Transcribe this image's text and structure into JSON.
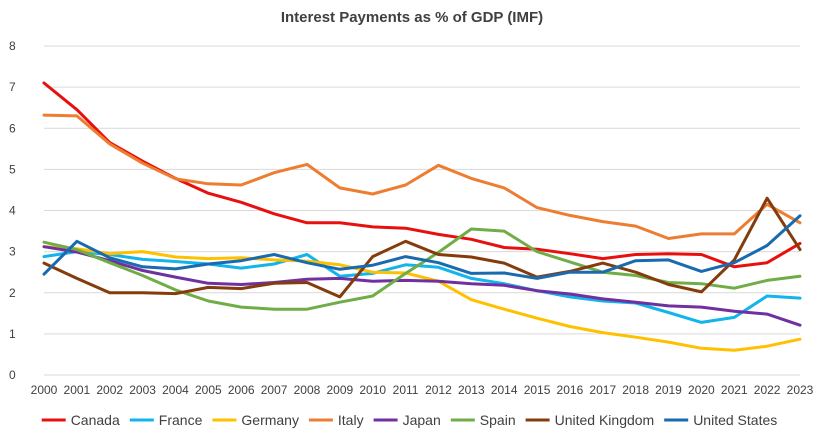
{
  "chart_data": {
    "type": "line",
    "title": "Interest Payments as % of GDP (IMF)",
    "xlabel": "",
    "ylabel": "",
    "x": [
      2000,
      2001,
      2002,
      2003,
      2004,
      2005,
      2006,
      2007,
      2008,
      2009,
      2010,
      2011,
      2012,
      2013,
      2014,
      2015,
      2016,
      2017,
      2018,
      2019,
      2020,
      2021,
      2022,
      2023
    ],
    "ylim": [
      0,
      8
    ],
    "yticks": [
      0,
      1,
      2,
      3,
      4,
      5,
      6,
      7,
      8
    ],
    "grid": true,
    "legend_position": "bottom",
    "series": [
      {
        "name": "Canada",
        "color": "#e8100e",
        "values": [
          7.1,
          6.45,
          5.65,
          5.2,
          4.78,
          4.42,
          4.2,
          3.92,
          3.7,
          3.7,
          3.6,
          3.57,
          3.42,
          3.3,
          3.1,
          3.06,
          2.95,
          2.83,
          2.93,
          2.95,
          2.93,
          2.63,
          2.73,
          3.2
        ]
      },
      {
        "name": "France",
        "color": "#12b4ec",
        "values": [
          2.88,
          3.0,
          2.93,
          2.81,
          2.76,
          2.7,
          2.6,
          2.7,
          2.93,
          2.4,
          2.47,
          2.68,
          2.62,
          2.35,
          2.22,
          2.05,
          1.9,
          1.8,
          1.75,
          1.52,
          1.28,
          1.4,
          1.92,
          1.87
        ]
      },
      {
        "name": "Germany",
        "color": "#ffc000",
        "values": [
          3.12,
          3.07,
          2.95,
          3.0,
          2.87,
          2.83,
          2.85,
          2.8,
          2.77,
          2.68,
          2.5,
          2.48,
          2.28,
          1.83,
          1.6,
          1.38,
          1.18,
          1.03,
          0.92,
          0.8,
          0.65,
          0.6,
          0.7,
          0.87
        ]
      },
      {
        "name": "Italy",
        "color": "#ed7d31",
        "values": [
          6.32,
          6.3,
          5.62,
          5.15,
          4.77,
          4.65,
          4.62,
          4.92,
          5.12,
          4.55,
          4.4,
          4.62,
          5.1,
          4.78,
          4.55,
          4.07,
          3.88,
          3.73,
          3.62,
          3.32,
          3.43,
          3.43,
          4.15,
          3.7
        ]
      },
      {
        "name": "Japan",
        "color": "#7030a0",
        "values": [
          3.12,
          2.99,
          2.78,
          2.54,
          2.38,
          2.23,
          2.2,
          2.25,
          2.33,
          2.35,
          2.28,
          2.3,
          2.28,
          2.22,
          2.18,
          2.05,
          1.97,
          1.85,
          1.77,
          1.68,
          1.65,
          1.55,
          1.48,
          1.21
        ]
      },
      {
        "name": "Spain",
        "color": "#70ad47",
        "values": [
          3.23,
          3.05,
          2.73,
          2.42,
          2.07,
          1.8,
          1.65,
          1.6,
          1.6,
          1.77,
          1.92,
          2.47,
          2.98,
          3.55,
          3.5,
          3.0,
          2.75,
          2.5,
          2.42,
          2.25,
          2.22,
          2.11,
          2.3,
          2.4
        ]
      },
      {
        "name": "United Kingdom",
        "color": "#843c0c",
        "values": [
          2.72,
          2.35,
          2.0,
          2.0,
          1.98,
          2.13,
          2.1,
          2.23,
          2.25,
          1.9,
          2.88,
          3.25,
          2.93,
          2.87,
          2.72,
          2.38,
          2.52,
          2.72,
          2.5,
          2.2,
          2.02,
          2.8,
          4.3,
          3.05
        ]
      },
      {
        "name": "United States",
        "color": "#1a6ab0",
        "values": [
          2.45,
          3.25,
          2.85,
          2.63,
          2.58,
          2.7,
          2.78,
          2.93,
          2.73,
          2.57,
          2.67,
          2.88,
          2.73,
          2.47,
          2.48,
          2.35,
          2.5,
          2.5,
          2.78,
          2.8,
          2.52,
          2.73,
          3.15,
          3.87
        ]
      }
    ]
  }
}
